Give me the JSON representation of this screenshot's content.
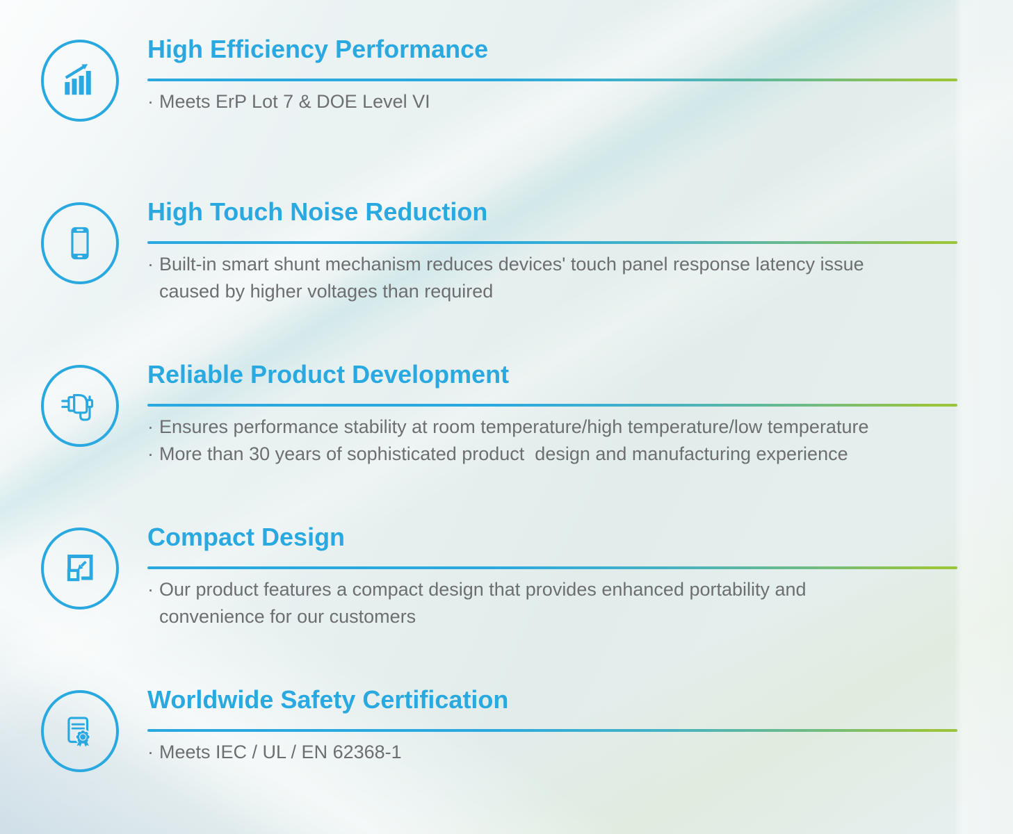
{
  "page": {
    "bullet_char": "·"
  },
  "colors": {
    "accent_blue": "#2aa9e0",
    "accent_green": "#9ac53a",
    "body_text_gray": "#6d6e71"
  },
  "sections": [
    {
      "icon": "bar-chart-growth-icon",
      "title": "High Efficiency Performance",
      "lines": [
        {
          "bullet": true,
          "text": "Meets ErP Lot 7 & DOE Level VI"
        }
      ]
    },
    {
      "icon": "smartphone-icon",
      "title": "High Touch Noise Reduction",
      "lines": [
        {
          "bullet": true,
          "text": "Built-in smart shunt mechanism reduces devices' touch panel response latency issue"
        },
        {
          "bullet": false,
          "text": "caused by higher voltages than required"
        }
      ]
    },
    {
      "icon": "power-adapter-icon",
      "title": "Reliable Product Development",
      "lines": [
        {
          "bullet": true,
          "text": "Ensures performance stability at room temperature/high temperature/low temperature"
        },
        {
          "bullet": true,
          "text": "More than 30 years of sophisticated product  design and manufacturing experience"
        }
      ]
    },
    {
      "icon": "compact-design-icon",
      "title": "Compact Design",
      "lines": [
        {
          "bullet": true,
          "text": "Our product features a compact design that provides enhanced portability and"
        },
        {
          "bullet": false,
          "text": "convenience for our customers"
        }
      ]
    },
    {
      "icon": "certificate-icon",
      "title": "Worldwide Safety Certification",
      "lines": [
        {
          "bullet": true,
          "text": "Meets IEC / UL / EN 62368-1"
        }
      ]
    }
  ]
}
